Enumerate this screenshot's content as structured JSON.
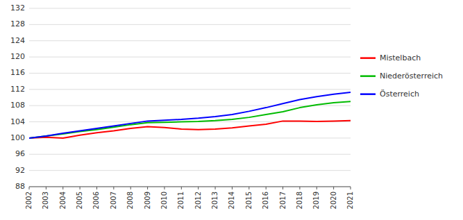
{
  "chart_data": {
    "type": "line",
    "x": [
      2002,
      2003,
      2004,
      2005,
      2006,
      2007,
      2008,
      2009,
      2010,
      2011,
      2012,
      2013,
      2014,
      2015,
      2016,
      2017,
      2018,
      2019,
      2020,
      2021
    ],
    "series": [
      {
        "name": "Mistelbach",
        "color": "#ff0000",
        "values": [
          100.0,
          100.2,
          100.0,
          100.7,
          101.3,
          101.8,
          102.4,
          102.8,
          102.6,
          102.2,
          102.1,
          102.2,
          102.5,
          103.0,
          103.4,
          104.2,
          104.2,
          104.1,
          104.2,
          104.3
        ]
      },
      {
        "name": "Niederösterreich",
        "color": "#00bb00",
        "values": [
          100.0,
          100.5,
          101.0,
          101.6,
          102.1,
          102.7,
          103.3,
          103.8,
          103.9,
          104.0,
          104.1,
          104.3,
          104.6,
          105.1,
          105.8,
          106.5,
          107.5,
          108.2,
          108.7,
          109.0
        ]
      },
      {
        "name": "Österreich",
        "color": "#0000ff",
        "values": [
          100.0,
          100.5,
          101.2,
          101.8,
          102.4,
          103.0,
          103.6,
          104.2,
          104.4,
          104.6,
          104.9,
          105.3,
          105.8,
          106.6,
          107.5,
          108.5,
          109.5,
          110.2,
          110.8,
          111.3
        ]
      }
    ],
    "xlim": [
      2002,
      2021
    ],
    "xticks": [
      2002,
      2003,
      2004,
      2005,
      2006,
      2007,
      2008,
      2009,
      2010,
      2011,
      2012,
      2013,
      2014,
      2015,
      2016,
      2017,
      2018,
      2019,
      2020,
      2021
    ],
    "ylim": [
      88,
      132
    ],
    "yticks": [
      88,
      92,
      96,
      100,
      104,
      108,
      112,
      116,
      120,
      124,
      128,
      132
    ],
    "grid": true,
    "legend": "right"
  }
}
